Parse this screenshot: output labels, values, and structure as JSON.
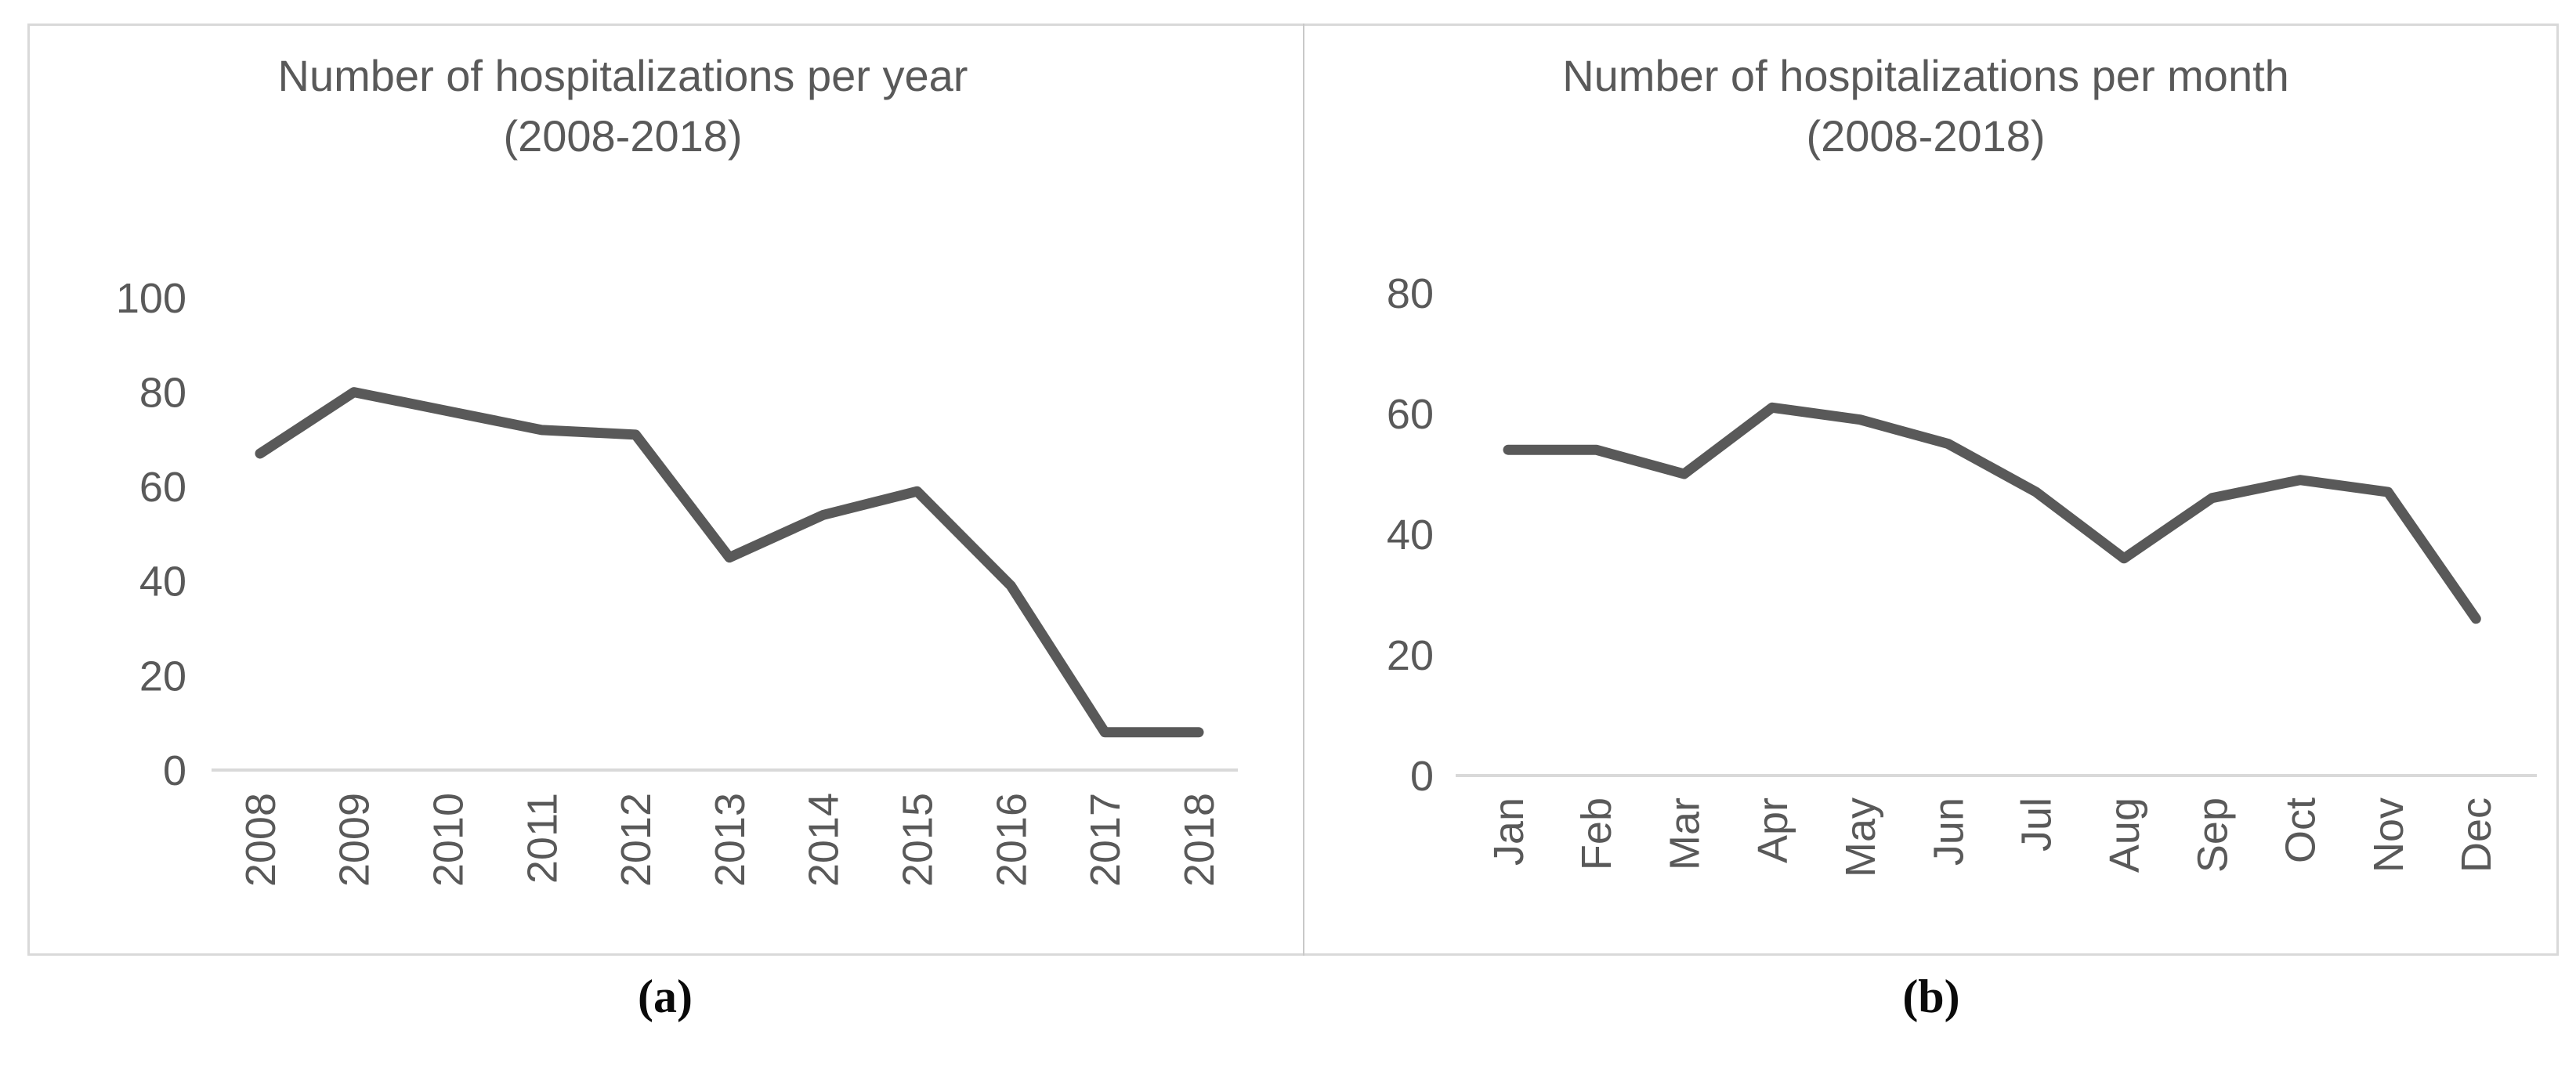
{
  "figure": {
    "panels": [
      {
        "caption": "(a)"
      },
      {
        "caption": "(b)"
      }
    ]
  },
  "chart_data": [
    {
      "type": "line",
      "title": "Number of hospitalizations per year",
      "subtitle": "(2008-2018)",
      "categories": [
        "2008",
        "2009",
        "2010",
        "2011",
        "2012",
        "2013",
        "2014",
        "2015",
        "2016",
        "2017",
        "2018"
      ],
      "values": [
        67,
        80,
        76,
        72,
        71,
        45,
        54,
        59,
        39,
        8,
        8
      ],
      "xlabel": "",
      "ylabel": "",
      "ylim": [
        0,
        100
      ],
      "yticks": [
        0,
        20,
        40,
        60,
        80,
        100
      ],
      "grid": false,
      "legend": "none",
      "line_color": "#595959",
      "axis_color": "#d9d9d9",
      "text_color": "#595959",
      "panel_label": "(a)"
    },
    {
      "type": "line",
      "title": "Number of hospitalizations per month",
      "subtitle": "(2008-2018)",
      "categories": [
        "Jan",
        "Feb",
        "Mar",
        "Apr",
        "May",
        "Jun",
        "Jul",
        "Aug",
        "Sep",
        "Oct",
        "Nov",
        "Dec"
      ],
      "values": [
        54,
        54,
        50,
        61,
        59,
        55,
        47,
        36,
        46,
        49,
        47,
        26
      ],
      "xlabel": "",
      "ylabel": "",
      "ylim": [
        0,
        80
      ],
      "yticks": [
        0,
        20,
        40,
        60,
        80
      ],
      "grid": false,
      "legend": "none",
      "line_color": "#595959",
      "axis_color": "#d9d9d9",
      "text_color": "#595959",
      "panel_label": "(b)"
    }
  ]
}
